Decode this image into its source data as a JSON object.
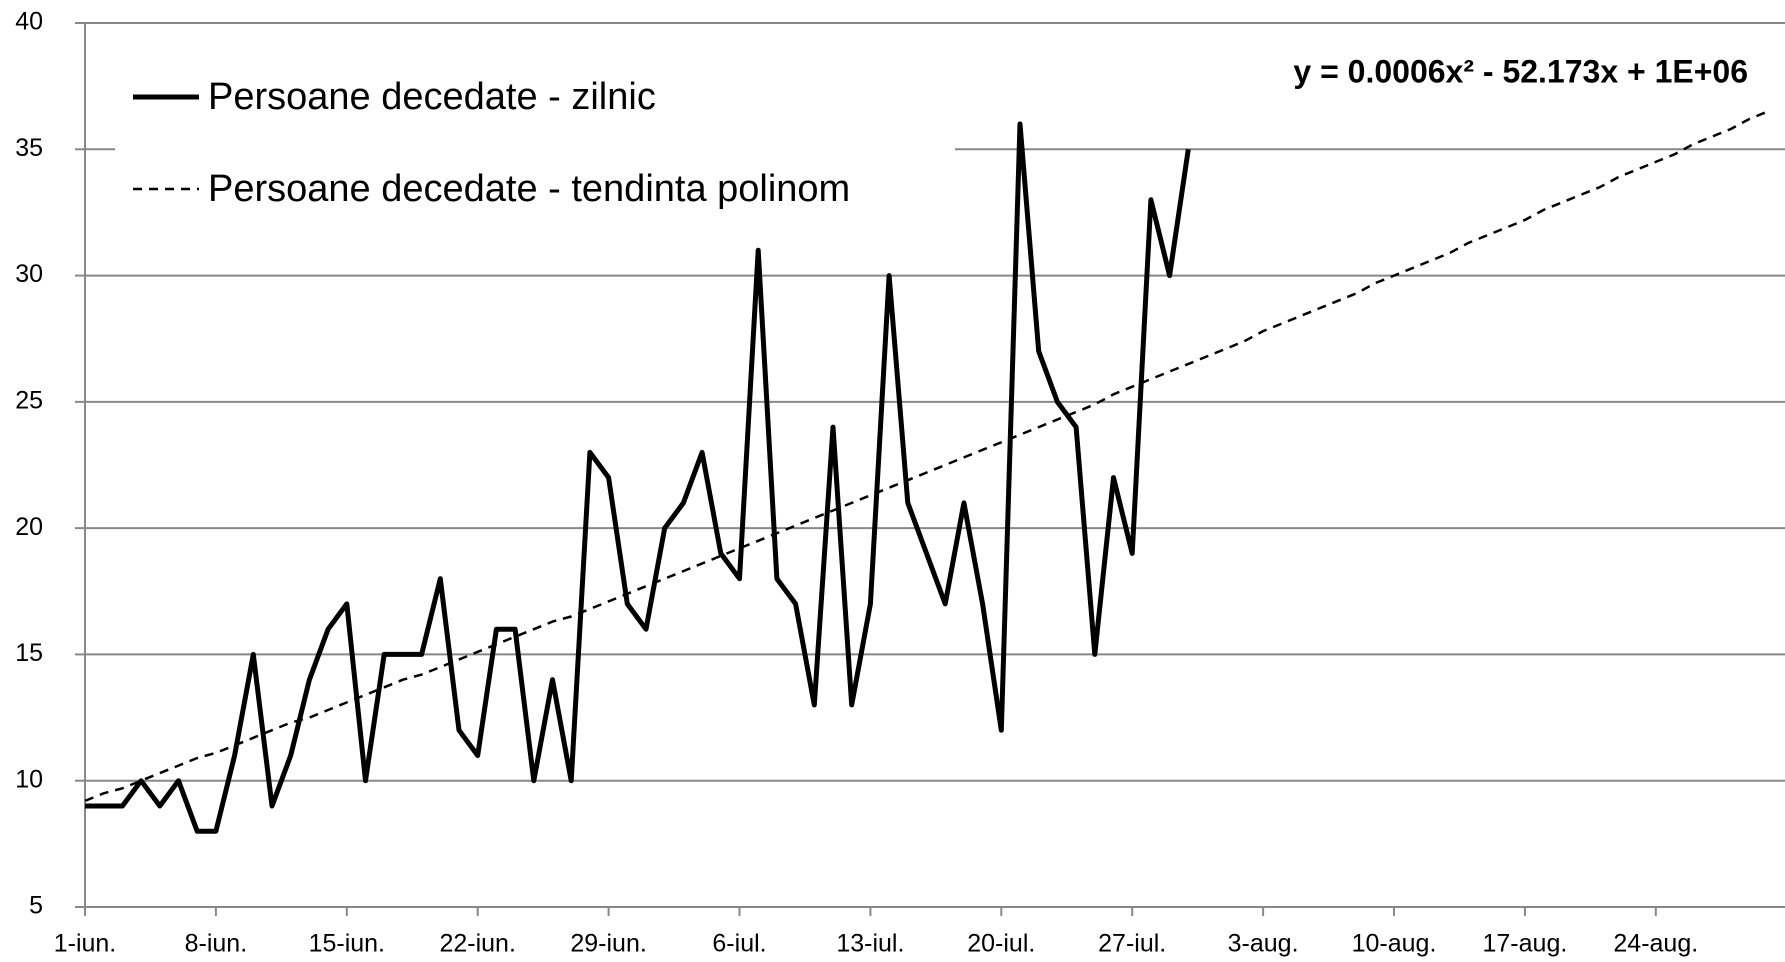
{
  "chart_data": {
    "type": "line",
    "trendline_equation": "y = 0.0006x² - 52.173x + 1E+06",
    "categories": [
      "1-iun.",
      null,
      null,
      null,
      null,
      null,
      null,
      "8-iun.",
      null,
      null,
      null,
      null,
      null,
      null,
      "15-iun.",
      null,
      null,
      null,
      null,
      null,
      null,
      "22-iun.",
      null,
      null,
      null,
      null,
      null,
      null,
      "29-iun.",
      null,
      null,
      null,
      null,
      null,
      null,
      "6-iul.",
      null,
      null,
      null,
      null,
      null,
      null,
      "13-iul.",
      null,
      null,
      null,
      null,
      null,
      null,
      "20-iul.",
      null,
      null,
      null,
      null,
      null,
      null,
      "27-iul.",
      null,
      null,
      null,
      null,
      null,
      null,
      "3-aug.",
      null,
      null,
      null,
      null,
      null,
      null,
      "10-aug.",
      null,
      null,
      null,
      null,
      null,
      null,
      "17-aug.",
      null,
      null,
      null,
      null,
      null,
      null,
      "24-aug.",
      null,
      null,
      null,
      null,
      null,
      null
    ],
    "series": [
      {
        "name": "Persoane decedate - zilnic",
        "color": "#000000",
        "line_style": "solid",
        "values": [
          9,
          9,
          9,
          10,
          9,
          10,
          8,
          8,
          11,
          15,
          9,
          11,
          14,
          16,
          17,
          10,
          15,
          15,
          15,
          18,
          12,
          11,
          16,
          16,
          10,
          14,
          10,
          23,
          22,
          17,
          16,
          20,
          21,
          23,
          19,
          18,
          31,
          18,
          17,
          13,
          24,
          13,
          17,
          30,
          21,
          19,
          17,
          21,
          17,
          12,
          36,
          27,
          25,
          24,
          15,
          22,
          19,
          33,
          30,
          35,
          null,
          null,
          null,
          null,
          null,
          null,
          null,
          null,
          null,
          null,
          null,
          null,
          null,
          null,
          null,
          null,
          null,
          null,
          null,
          null,
          null,
          null,
          null,
          null,
          null,
          null,
          null,
          null,
          null,
          null,
          null
        ]
      },
      {
        "name": "Persoane decedate - tendinta polinom",
        "color": "#000000",
        "line_style": "dashed",
        "values": [
          9.2,
          9.5,
          9.7,
          10.0,
          10.3,
          10.6,
          10.9,
          11.1,
          11.4,
          11.7,
          12.0,
          12.3,
          12.5,
          12.8,
          13.1,
          13.4,
          13.7,
          14.0,
          14.2,
          14.5,
          14.8,
          15.1,
          15.4,
          15.7,
          16.0,
          16.3,
          16.5,
          16.8,
          17.1,
          17.4,
          17.7,
          18.0,
          18.3,
          18.6,
          18.9,
          19.2,
          19.5,
          19.8,
          20.1,
          20.4,
          20.7,
          21.0,
          21.3,
          21.6,
          21.9,
          22.2,
          22.5,
          22.8,
          23.1,
          23.4,
          23.7,
          24.0,
          24.3,
          24.6,
          24.9,
          25.3,
          25.6,
          25.9,
          26.2,
          26.5,
          26.8,
          27.1,
          27.4,
          27.8,
          28.1,
          28.4,
          28.7,
          29.0,
          29.3,
          29.7,
          30.0,
          30.3,
          30.6,
          30.9,
          31.3,
          31.6,
          31.9,
          32.2,
          32.6,
          32.9,
          33.2,
          33.5,
          33.9,
          34.2,
          34.5,
          34.8,
          35.2,
          35.5,
          35.8,
          36.2,
          36.5
        ]
      }
    ],
    "ylim": [
      5,
      40
    ],
    "yticks": [
      5,
      10,
      15,
      20,
      25,
      30,
      35,
      40
    ],
    "grid": true,
    "legend": "top-left"
  }
}
